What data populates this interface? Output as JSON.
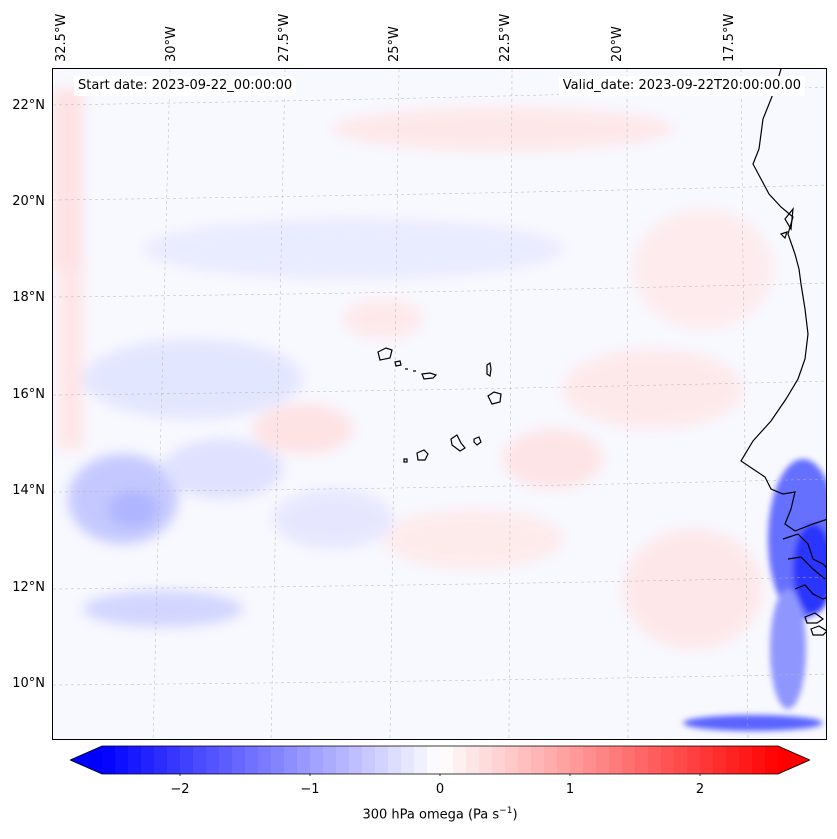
{
  "header": {
    "start_date": "Start date: 2023-09-22_00:00:00",
    "valid_date": "Valid_date: 2023-09-22T20:00:00.00"
  },
  "latitude_ticks": [
    "22°N",
    "20°N",
    "18°N",
    "16°N",
    "14°N",
    "12°N",
    "10°N"
  ],
  "longitude_ticks": [
    "32.5°W",
    "30°W",
    "27.5°W",
    "25°W",
    "22.5°W",
    "20°W",
    "17.5°W"
  ],
  "colorbar": {
    "label": "300 hPa omega (Pa s",
    "label_sup": "−1",
    "label_close": ")",
    "ticks": [
      "−2",
      "−1",
      "0",
      "1",
      "2"
    ],
    "tick_values": [
      -2,
      -1,
      0,
      1,
      2
    ],
    "range": [
      -2.6,
      2.6
    ],
    "colormap": "bwr",
    "extend": "both",
    "low_color": "#0000ff",
    "mid_color": "#ffffff",
    "high_color": "#ff0000"
  },
  "map": {
    "field": "300 hPa omega",
    "extent_lon": [
      -33,
      -14.5
    ],
    "extent_lat": [
      9,
      22.7
    ],
    "features": [
      "cape-verde-islands",
      "west-africa-coastline"
    ]
  }
}
